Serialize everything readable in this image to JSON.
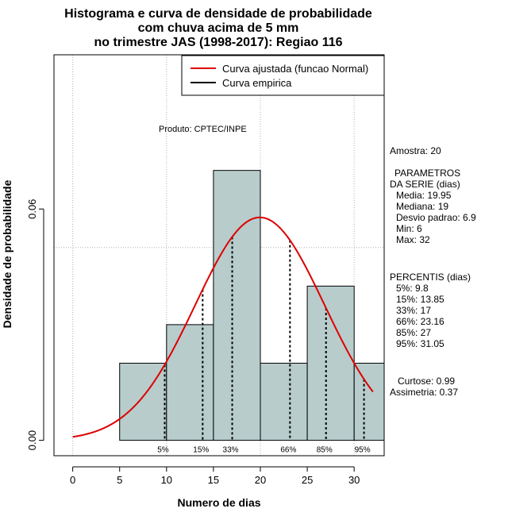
{
  "chart_data": {
    "type": "histogram",
    "title_lines": [
      "Histograma e curva de densidade de probabilidade",
      "com chuva acima de 5 mm",
      "no trimestre JAS (1998-2017): Regiao 116"
    ],
    "xlabel": "Numero de dias",
    "ylabel": "Densidade de probabilidade",
    "xlim": [
      -2,
      33.2
    ],
    "ylim": [
      -0.004,
      0.1
    ],
    "x_ticks": [
      0,
      5,
      10,
      15,
      20,
      25,
      30
    ],
    "y_ticks": [
      0.0,
      0.06
    ],
    "y_tick_labels": [
      "0.00",
      "0.06"
    ],
    "grid_x": [
      0,
      10,
      20,
      30
    ],
    "grid_y": [
      0.05,
      0.1
    ],
    "bins": [
      {
        "start": 5,
        "end": 10,
        "density": 0.02
      },
      {
        "start": 10,
        "end": 15,
        "density": 0.03
      },
      {
        "start": 15,
        "end": 20,
        "density": 0.07
      },
      {
        "start": 20,
        "end": 25,
        "density": 0.02
      },
      {
        "start": 25,
        "end": 30,
        "density": 0.04
      },
      {
        "start": 30,
        "end": 33.2,
        "density": 0.02
      }
    ],
    "normal_curve": {
      "mean": 19.95,
      "sd": 6.9,
      "x_from": 0,
      "x_to": 32
    },
    "legend": [
      {
        "label": "Curva ajustada (funcao Normal)",
        "color": "#dd0000"
      },
      {
        "label": "Curva empirica",
        "color": "#000000"
      }
    ],
    "product_note": "Produto: CPTEC/INPE",
    "percentiles": [
      {
        "label": "5%",
        "value": 9.8
      },
      {
        "label": "15%",
        "value": 13.85
      },
      {
        "label": "33%",
        "value": 17
      },
      {
        "label": "66%",
        "value": 23.16
      },
      {
        "label": "85%",
        "value": 27
      },
      {
        "label": "95%",
        "value": 31.05
      }
    ],
    "stats": {
      "amostra": "Amostra: 20",
      "parametros_title": "PARAMETROS",
      "serie_title": "DA SERIE (dias)",
      "media": "Media: 19.95",
      "mediana": "Mediana: 19",
      "desvio": "Desvio padrao: 6.9",
      "min": "Min: 6",
      "max": "Max: 32",
      "percentis_title": "PERCENTIS (dias)",
      "p5": "5%: 9.8",
      "p15": "15%: 13.85",
      "p33": "33%: 17",
      "p66": "66%: 23.16",
      "p85": "85%: 27",
      "p95": "95%: 31.05",
      "curtose": "Curtose: 0.99",
      "assimetria": "Assimetria: 0.37"
    }
  },
  "colors": {
    "bar_fill": "#b8cccc",
    "curve": "#dd0000",
    "grid": "#b0b0b0"
  }
}
